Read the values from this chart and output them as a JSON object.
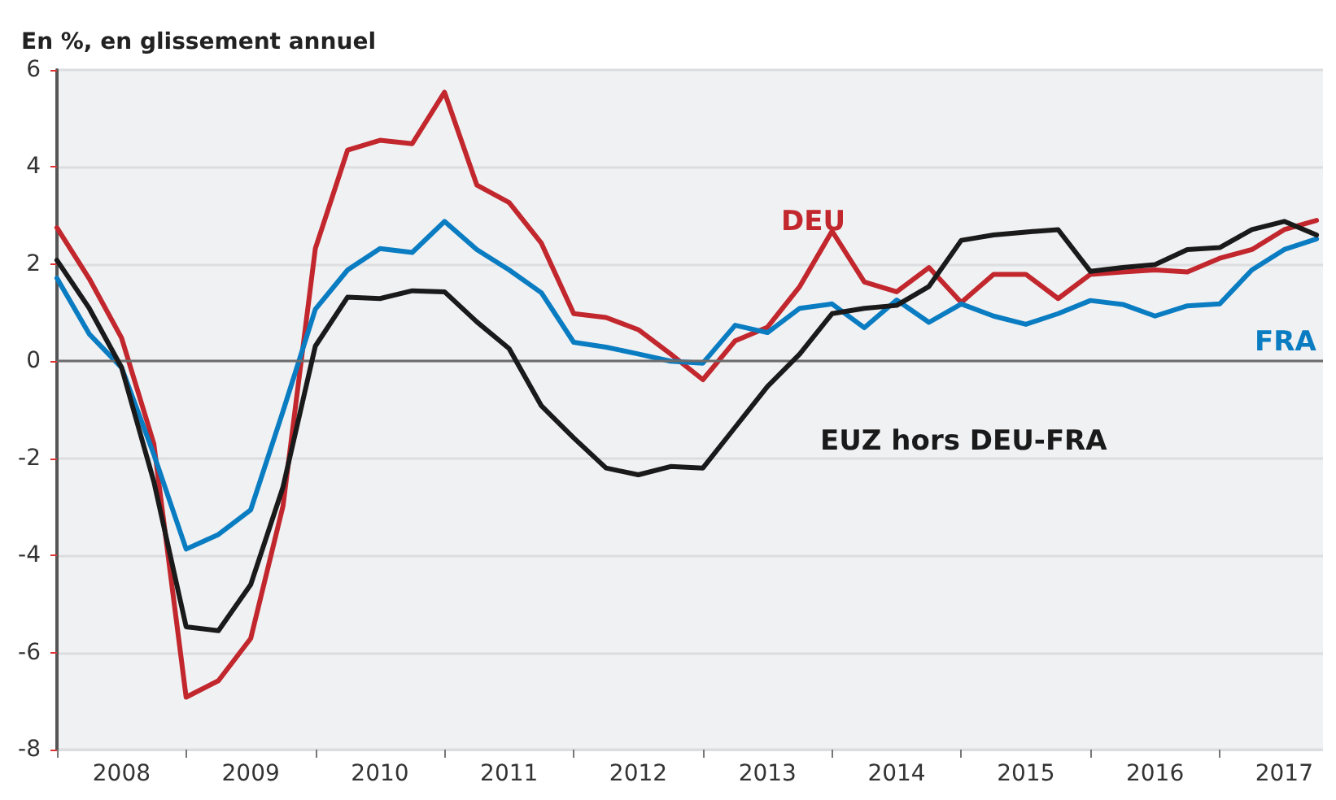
{
  "chart_data": {
    "type": "line",
    "ylabel": "En %, en glissement annuel",
    "x": [
      2008,
      2008.25,
      2008.5,
      2008.75,
      2009,
      2009.25,
      2009.5,
      2009.75,
      2010,
      2010.25,
      2010.5,
      2010.75,
      2011,
      2011.25,
      2011.5,
      2011.75,
      2012,
      2012.25,
      2012.5,
      2012.75,
      2013,
      2013.25,
      2013.5,
      2013.75,
      2014,
      2014.25,
      2014.5,
      2014.75,
      2015,
      2015.25,
      2015.5,
      2015.75,
      2016,
      2016.25,
      2016.5,
      2016.75,
      2017,
      2017.25,
      2017.5,
      2017.75
    ],
    "series": [
      {
        "name": "DEU",
        "color": "#c1272d",
        "values": [
          2.75,
          1.7,
          0.48,
          -1.7,
          -6.92,
          -6.58,
          -5.71,
          -2.98,
          2.32,
          4.35,
          4.55,
          4.48,
          5.54,
          3.63,
          3.27,
          2.43,
          0.98,
          0.9,
          0.65,
          0.15,
          -0.38,
          0.42,
          0.7,
          1.54,
          2.68,
          1.63,
          1.43,
          1.93,
          1.21,
          1.79,
          1.79,
          1.29,
          1.79,
          1.84,
          1.88,
          1.84,
          2.12,
          2.3,
          2.71,
          2.9
        ]
      },
      {
        "name": "FRA",
        "color": "#0a7cc1",
        "values": [
          1.71,
          0.56,
          -0.13,
          -1.92,
          -3.87,
          -3.57,
          -3.06,
          -1.03,
          1.07,
          1.88,
          2.32,
          2.24,
          2.88,
          2.3,
          1.88,
          1.41,
          0.39,
          0.29,
          0.15,
          0.0,
          -0.04,
          0.74,
          0.59,
          1.09,
          1.18,
          0.69,
          1.26,
          0.8,
          1.18,
          0.93,
          0.76,
          0.98,
          1.25,
          1.17,
          0.93,
          1.14,
          1.18,
          1.88,
          2.3,
          2.52
        ]
      },
      {
        "name": "EUZ hors DEU-FRA",
        "color": "#1a1a1a",
        "values": [
          2.08,
          1.09,
          -0.13,
          -2.48,
          -5.47,
          -5.55,
          -4.6,
          -2.59,
          0.31,
          1.32,
          1.29,
          1.45,
          1.43,
          0.81,
          0.26,
          -0.92,
          -1.58,
          -2.2,
          -2.34,
          -2.17,
          -2.2,
          -1.36,
          -0.52,
          0.15,
          0.98,
          1.09,
          1.15,
          1.54,
          2.49,
          2.6,
          2.66,
          2.71,
          1.85,
          1.93,
          1.99,
          2.3,
          2.34,
          2.71,
          2.88,
          2.6
        ]
      }
    ],
    "xlim": [
      2008,
      2017.8
    ],
    "xticks": [
      {
        "value": 2008,
        "label": null
      },
      {
        "value": 2008.5,
        "label": "2008"
      },
      {
        "value": 2009,
        "label": null
      },
      {
        "value": 2009.5,
        "label": "2009"
      },
      {
        "value": 2010,
        "label": null
      },
      {
        "value": 2010.5,
        "label": "2010"
      },
      {
        "value": 2011,
        "label": null
      },
      {
        "value": 2011.5,
        "label": "2011"
      },
      {
        "value": 2012,
        "label": null
      },
      {
        "value": 2012.5,
        "label": "2012"
      },
      {
        "value": 2013,
        "label": null
      },
      {
        "value": 2013.5,
        "label": "2013"
      },
      {
        "value": 2014,
        "label": null
      },
      {
        "value": 2014.5,
        "label": "2014"
      },
      {
        "value": 2015,
        "label": null
      },
      {
        "value": 2015.5,
        "label": "2015"
      },
      {
        "value": 2016,
        "label": null
      },
      {
        "value": 2016.5,
        "label": "2016"
      },
      {
        "value": 2017,
        "label": null
      },
      {
        "value": 2017.5,
        "label": "2017"
      }
    ],
    "ylim": [
      -8,
      6
    ],
    "yticks": [
      -8,
      -6,
      -4,
      -2,
      0,
      2,
      4,
      6
    ],
    "ref_lines": [
      {
        "axis": "y",
        "value": 0,
        "color": "#6b6b6b"
      }
    ],
    "grid": "y",
    "legend": false,
    "marker": "none",
    "line_style": "solid"
  }
}
